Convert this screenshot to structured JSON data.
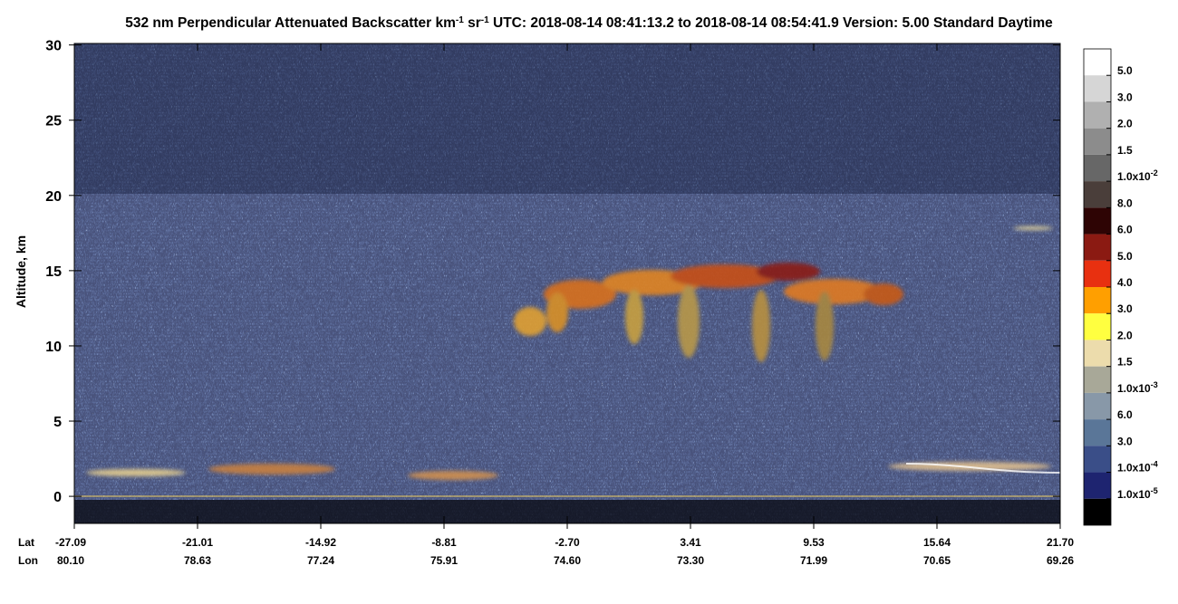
{
  "chart_data": {
    "type": "curtain",
    "title_parts": [
      {
        "text": "532 nm Perpendicular Attenuated Backscatter km"
      },
      {
        "text": "-1",
        "sup": true
      },
      {
        "text": " sr"
      },
      {
        "text": "-1",
        "sup": true
      },
      {
        "text": "  UTC: 2018-08-14 08:41:13.2 to 2018-08-14 08:54:41.9  Version: 5.00 Standard Daytime"
      }
    ],
    "ylabel": "Altitude, km",
    "ylim": [
      -1.8,
      30.1
    ],
    "yticks": [
      0,
      5,
      10,
      15,
      20,
      25,
      30
    ],
    "lat_title": "Lat",
    "lon_title": "Lon",
    "lat_labels": [
      "-27.09",
      "-21.01",
      "-14.92",
      "-8.81",
      "-2.70",
      "3.41",
      "9.53",
      "15.64",
      "21.70"
    ],
    "lon_labels": [
      "80.10",
      "78.63",
      "77.24",
      "75.91",
      "74.60",
      "73.30",
      "71.99",
      "70.65",
      "69.26"
    ],
    "colorbar": {
      "colors": [
        "#ffffff",
        "#d6d6d6",
        "#b0b0b0",
        "#8c8c8c",
        "#676767",
        "#4a3e3a",
        "#2e0404",
        "#8b1a12",
        "#e83010",
        "#ff9f00",
        "#ffff40",
        "#ecdcac",
        "#a8a898",
        "#8898a8",
        "#5a7698",
        "#3a4e88",
        "#1e2470",
        "#000000"
      ],
      "labels": [
        {
          "text": "5.0"
        },
        {
          "text": "3.0"
        },
        {
          "text": "2.0"
        },
        {
          "text": "1.5"
        },
        {
          "text": "1.0x10",
          "exp": "-2"
        },
        {
          "text": "8.0"
        },
        {
          "text": "6.0"
        },
        {
          "text": "5.0"
        },
        {
          "text": "4.0"
        },
        {
          "text": "3.0"
        },
        {
          "text": "2.0"
        },
        {
          "text": "1.5"
        },
        {
          "text": "1.0x10",
          "exp": "-3"
        },
        {
          "text": "6.0"
        },
        {
          "text": "3.0"
        },
        {
          "text": "1.0x10",
          "exp": "-4"
        },
        {
          "text": "1.0x10",
          "exp": "-5"
        }
      ]
    }
  }
}
